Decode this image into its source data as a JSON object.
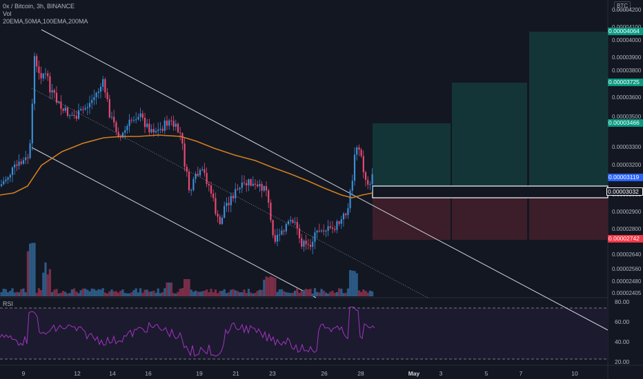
{
  "header": {
    "symbol_line": "0x / Bitcoin, 3h, BINANCE",
    "volume_label": "Vol",
    "indicators": "20EMA,50MA,100EMA,200MA"
  },
  "currency_tag": "BTC",
  "price_axis": {
    "labels": [
      "0.00004200",
      "0.00004100",
      "0.00004000",
      "0.00003900",
      "0.00003800",
      "0.00003600",
      "0.00003500",
      "0.00003300",
      "0.00003200",
      "0.00003000",
      "0.00002900",
      "0.00002800",
      "0.00002720",
      "0.00002640",
      "0.00002560",
      "0.00002480",
      "0.00002405"
    ]
  },
  "price_tags": [
    {
      "name": "target-2",
      "value": "0.00004064",
      "color": "#089981"
    },
    {
      "name": "target-1",
      "value": "0.00003725",
      "color": "#089981"
    },
    {
      "name": "entry-top",
      "value": "0.00003466",
      "color": "#089981"
    },
    {
      "name": "current",
      "value": "0.00003119",
      "color": "#2962ff"
    },
    {
      "name": "entry",
      "value": "0.00003032",
      "color": "#131722"
    },
    {
      "name": "stop",
      "value": "0.00002742",
      "color": "#f23645"
    }
  ],
  "rsi": {
    "label": "RSI",
    "levels": [
      "80.00",
      "60.00",
      "40.00",
      "20.00"
    ]
  },
  "time_axis": {
    "labels": [
      "9",
      "12",
      "14",
      "16",
      "19",
      "21",
      "23",
      "26",
      "28",
      "May",
      "3",
      "5",
      "7",
      "10"
    ]
  },
  "colors": {
    "up": "#3a8fd8",
    "down": "#e84a73",
    "ma": "#d47f1d",
    "rsi": "#a334c6",
    "channel": "#d1d4dc"
  },
  "chart_data": {
    "type": "candlestick",
    "symbol": "0x / Bitcoin",
    "interval": "3h",
    "exchange": "BINANCE",
    "ylim": [
      2.405e-05,
      4.2e-05
    ],
    "key_levels": {
      "target_2": 4.064e-05,
      "target_1": 3.725e-05,
      "entry_zone_top": 3.466e-05,
      "current": 3.119e-05,
      "entry": 3.032e-05,
      "stop": 2.742e-05
    },
    "rsi_levels": [
      80,
      60,
      40,
      20
    ]
  }
}
